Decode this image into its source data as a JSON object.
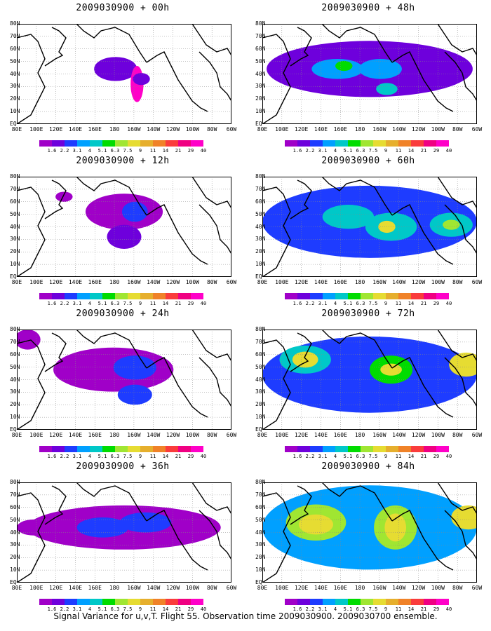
{
  "panels": [
    {
      "title": "2009030900 + 00h",
      "level": 0
    },
    {
      "title": "2009030900 + 48h",
      "level": 4
    },
    {
      "title": "2009030900 + 12h",
      "level": 1
    },
    {
      "title": "2009030900 + 60h",
      "level": 5
    },
    {
      "title": "2009030900 + 24h",
      "level": 2
    },
    {
      "title": "2009030900 + 72h",
      "level": 6
    },
    {
      "title": "2009030900 + 36h",
      "level": 3
    },
    {
      "title": "2009030900 + 84h",
      "level": 7
    }
  ],
  "lat_labels": [
    "80N",
    "70N",
    "60N",
    "50N",
    "40N",
    "30N",
    "20N",
    "10N",
    "EQ"
  ],
  "lon_labels": [
    "80E",
    "100E",
    "120E",
    "140E",
    "160E",
    "180",
    "160W",
    "140W",
    "120W",
    "100W",
    "80W",
    "60W"
  ],
  "colorbar": {
    "labels": [
      "1.6",
      "2.2",
      "3.1",
      "4",
      "5.1",
      "6.3",
      "7.5",
      "9",
      "11",
      "14",
      "21",
      "29",
      "40"
    ],
    "colors": [
      "#a000c8",
      "#6e00dc",
      "#1e3cff",
      "#00a0ff",
      "#00c8c8",
      "#00dc00",
      "#a0e632",
      "#e6dc32",
      "#e6af2d",
      "#f08228",
      "#fa3c3c",
      "#f00082",
      "#ff00c8"
    ]
  },
  "caption": "Signal Variance for u,v,T. Flight 55. Observation time 2009030900. 2009030700 ensemble."
}
